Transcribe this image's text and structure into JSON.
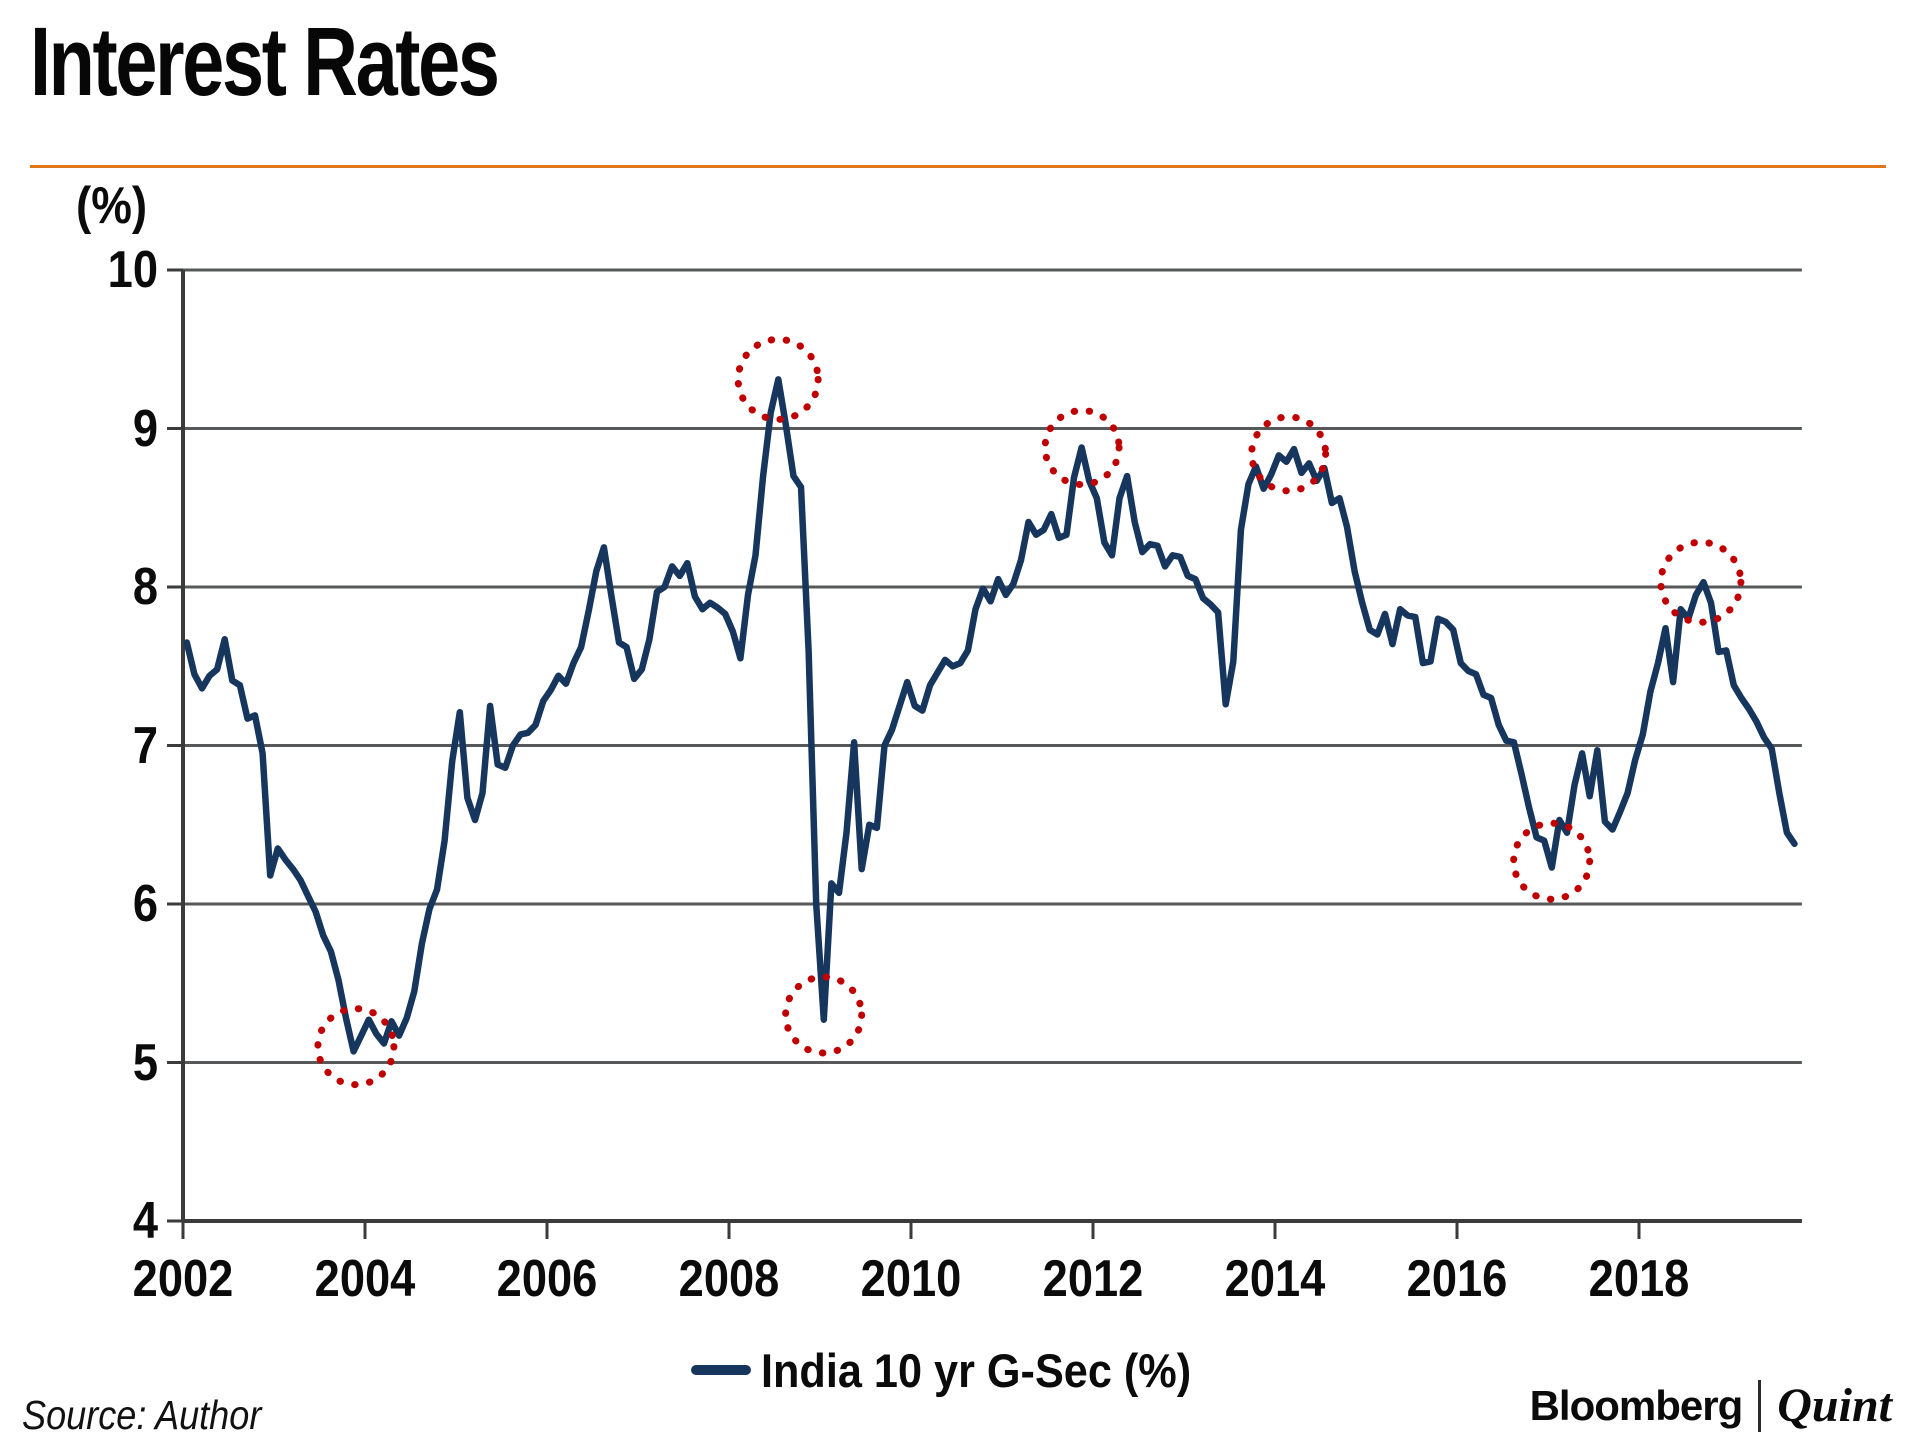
{
  "header": {
    "title": "Interest Rates",
    "accent_color": "#e2761b"
  },
  "footer": {
    "source": "Source: Author",
    "brand_left": "Bloomberg",
    "brand_right": "Quint"
  },
  "chart_data": {
    "type": "line",
    "title": "Interest Rates",
    "unit_label": "(%)",
    "xlabel": "",
    "ylabel": "(%)",
    "ylim": [
      4,
      10
    ],
    "yticks": [
      10,
      9,
      8,
      7,
      6,
      5,
      4
    ],
    "xticks": [
      2002,
      2004,
      2006,
      2008,
      2010,
      2012,
      2014,
      2016,
      2018
    ],
    "x_start": 2002.0,
    "x_end": 2019.75,
    "points_per_year": 12,
    "grid": "horizontal",
    "grid_color": "#57585a",
    "axis_color": "#3b3b3b",
    "legend_position": "bottom",
    "annotation_color": "#c00000",
    "annotations": [
      {
        "label": "trough-2003",
        "x": 2003.9,
        "y": 5.1,
        "r": 38
      },
      {
        "label": "peak-2008",
        "x": 2008.54,
        "y": 9.31,
        "r": 40
      },
      {
        "label": "trough-2009",
        "x": 2009.04,
        "y": 5.3,
        "r": 38
      },
      {
        "label": "peak-2011",
        "x": 2011.88,
        "y": 8.88,
        "r": 37
      },
      {
        "label": "peak-2014",
        "x": 2014.15,
        "y": 8.84,
        "r": 37
      },
      {
        "label": "trough-2017",
        "x": 2017.04,
        "y": 6.27,
        "r": 38
      },
      {
        "label": "peak-2018",
        "x": 2018.68,
        "y": 8.03,
        "r": 40
      }
    ],
    "series": [
      {
        "name": "India 10 yr G-Sec (%)",
        "color": "#17365d",
        "start_year": 2002,
        "frequency": "monthly",
        "values": [
          7.65,
          7.45,
          7.36,
          7.44,
          7.48,
          7.67,
          7.41,
          7.38,
          7.17,
          7.19,
          6.95,
          6.18,
          6.35,
          6.28,
          6.22,
          6.15,
          6.05,
          5.95,
          5.8,
          5.7,
          5.52,
          5.28,
          5.07,
          5.17,
          5.27,
          5.18,
          5.12,
          5.26,
          5.17,
          5.28,
          5.45,
          5.75,
          5.97,
          6.09,
          6.4,
          6.9,
          7.21,
          6.67,
          6.53,
          6.7,
          7.25,
          6.88,
          6.86,
          7.0,
          7.07,
          7.08,
          7.13,
          7.28,
          7.35,
          7.44,
          7.39,
          7.52,
          7.62,
          7.85,
          8.1,
          8.25,
          7.94,
          7.65,
          7.62,
          7.42,
          7.48,
          7.67,
          7.97,
          8.0,
          8.13,
          8.07,
          8.15,
          7.94,
          7.86,
          7.9,
          7.87,
          7.83,
          7.72,
          7.55,
          7.95,
          8.2,
          8.7,
          9.1,
          9.31,
          9.02,
          8.7,
          8.63,
          7.6,
          6.0,
          5.27,
          6.13,
          6.07,
          6.45,
          7.02,
          6.22,
          6.5,
          6.48,
          7.0,
          7.1,
          7.25,
          7.4,
          7.25,
          7.22,
          7.38,
          7.46,
          7.54,
          7.5,
          7.52,
          7.6,
          7.86,
          7.99,
          7.91,
          8.05,
          7.95,
          8.02,
          8.17,
          8.41,
          8.33,
          8.36,
          8.46,
          8.31,
          8.33,
          8.69,
          8.88,
          8.67,
          8.56,
          8.28,
          8.2,
          8.56,
          8.7,
          8.41,
          8.22,
          8.27,
          8.26,
          8.13,
          8.2,
          8.19,
          8.07,
          8.05,
          7.93,
          7.89,
          7.84,
          7.26,
          7.53,
          8.36,
          8.65,
          8.76,
          8.62,
          8.71,
          8.83,
          8.79,
          8.87,
          8.72,
          8.78,
          8.67,
          8.75,
          8.53,
          8.56,
          8.38,
          8.1,
          7.9,
          7.73,
          7.7,
          7.83,
          7.64,
          7.86,
          7.82,
          7.81,
          7.52,
          7.53,
          7.8,
          7.78,
          7.73,
          7.52,
          7.47,
          7.45,
          7.32,
          7.3,
          7.13,
          7.03,
          7.02,
          6.82,
          6.61,
          6.42,
          6.4,
          6.23,
          6.53,
          6.45,
          6.75,
          6.95,
          6.68,
          6.97,
          6.52,
          6.47,
          6.58,
          6.7,
          6.91,
          7.07,
          7.34,
          7.52,
          7.74,
          7.4,
          7.86,
          7.8,
          7.95,
          8.03,
          7.9,
          7.59,
          7.6,
          7.38,
          7.3,
          7.23,
          7.15,
          7.05,
          6.98,
          6.7,
          6.45,
          6.38
        ]
      }
    ]
  }
}
